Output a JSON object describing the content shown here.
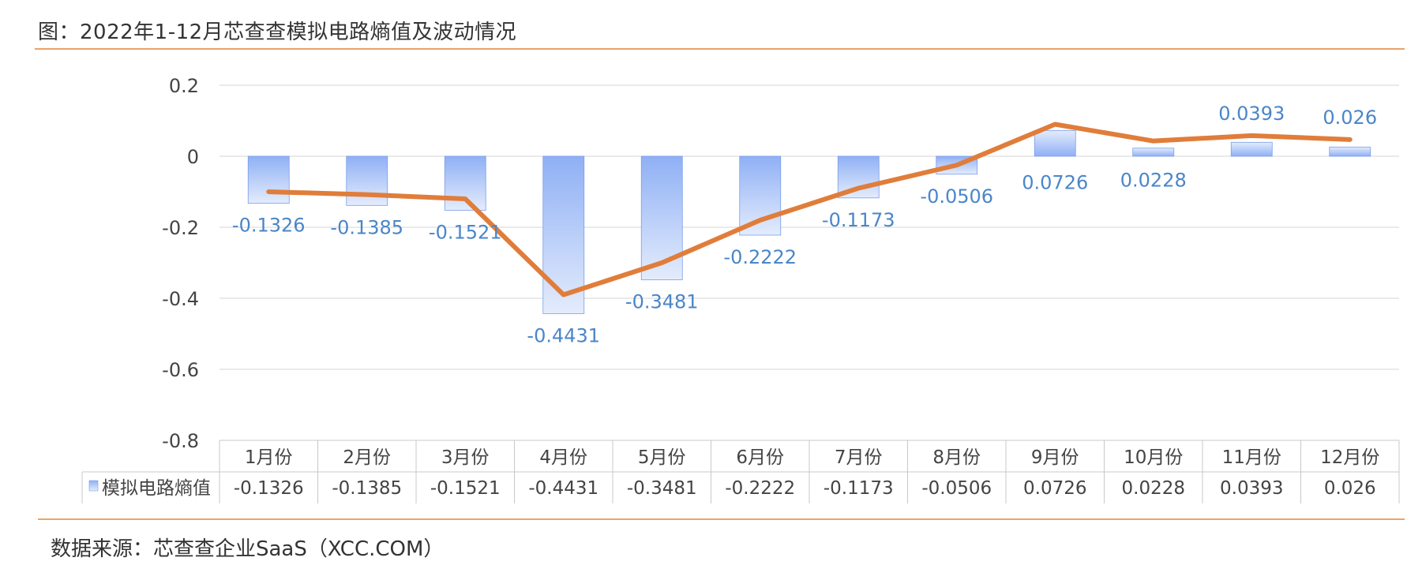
{
  "title": "图：2022年1-12月芯查查模拟电路熵值及波动情况",
  "source": "数据来源：芯查查企业SaaS（XCC.COM）",
  "colors": {
    "bar_top": "#8fb0f5",
    "bar_bottom": "#dfe8fb",
    "bar_stroke": "#7a9ee8",
    "line": "#e07d3a",
    "label": "#4a86c8",
    "grid": "#d4d4d4",
    "axis_text": "#444444",
    "rule": "#e9a36b"
  },
  "chart_data": {
    "type": "bar",
    "categories": [
      "1月份",
      "2月份",
      "3月份",
      "4月份",
      "5月份",
      "6月份",
      "7月份",
      "8月份",
      "9月份",
      "10月份",
      "11月份",
      "12月份"
    ],
    "series": [
      {
        "name": "模拟电路熵值",
        "type": "bar",
        "values": [
          -0.1326,
          -0.1385,
          -0.1521,
          -0.4431,
          -0.3481,
          -0.2222,
          -0.1173,
          -0.0506,
          0.0726,
          0.0228,
          0.0393,
          0.026
        ],
        "labels": [
          "-0.1326",
          "-0.1385",
          "-0.1521",
          "-0.4431",
          "-0.3481",
          "-0.2222",
          "-0.1173",
          "-0.0506",
          "0.0726",
          "0.0228",
          "0.0393",
          "0.026"
        ]
      },
      {
        "type": "line",
        "values": [
          -0.1,
          -0.108,
          -0.12,
          -0.39,
          -0.3,
          -0.18,
          -0.09,
          -0.025,
          0.09,
          0.043,
          0.058,
          0.047
        ]
      }
    ],
    "yticks": [
      "0.2",
      "0",
      "-0.2",
      "-0.4",
      "-0.6",
      "-0.8"
    ],
    "ytick_values": [
      0.2,
      0,
      -0.2,
      -0.4,
      -0.6,
      -0.8
    ],
    "ylim": [
      -0.8,
      0.2
    ],
    "grid": true,
    "legend": "data-table"
  }
}
